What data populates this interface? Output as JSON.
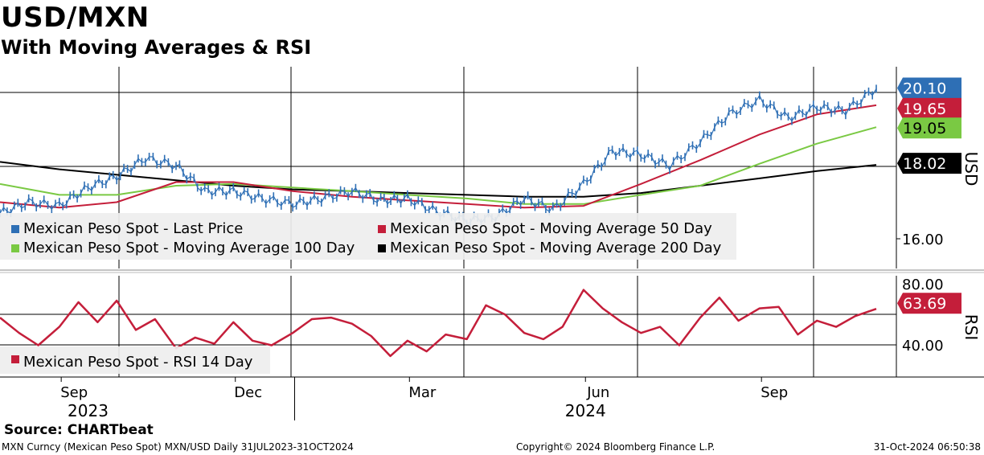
{
  "title": "USD/MXN",
  "subtitle": "With Moving Averages & RSI",
  "source": "Source: CHARTbeat",
  "footer": {
    "left": "MXN Curncy (Mexican Peso Spot) MXN/USD  Daily 31JUL2023-31OCT2024",
    "center": "Copyright© 2024 Bloomberg Finance L.P.",
    "right": "31-Oct-2024 06:50:38"
  },
  "colors": {
    "last_price": "#2e6fb5",
    "ma50": "#c41e3a",
    "ma100": "#7ac943",
    "ma200": "#000000",
    "rsi": "#c41e3a"
  },
  "chart_data": [
    {
      "type": "line",
      "panel": "price",
      "title": "USD/MXN",
      "subtitle": "With Moving Averages & RSI",
      "ylabel": "USD",
      "date_range": [
        "2023-07-31",
        "2024-10-31"
      ],
      "y_ticks": [
        "16.00"
      ],
      "last_values": {
        "last_price": "20.10",
        "ma50": "19.65",
        "ma100": "19.05",
        "ma200": "18.02"
      },
      "legend": [
        "Mexican Peso Spot - Last Price",
        "Mexican Peso Spot - Moving Average 50 Day",
        "Mexican Peso Spot - Moving Average 100 Day",
        "Mexican Peso Spot - Moving Average 200 Day"
      ],
      "legend_placement": "bottom-left",
      "grid": true,
      "series": [
        {
          "name": "Mexican Peso Spot - Last Price",
          "key": "last_price",
          "x": [
            "2023-07-31",
            "2023-08-15",
            "2023-08-31",
            "2023-09-15",
            "2023-09-30",
            "2023-10-15",
            "2023-10-31",
            "2023-11-15",
            "2023-11-30",
            "2023-12-15",
            "2023-12-31",
            "2024-01-15",
            "2024-01-31",
            "2024-02-15",
            "2024-02-29",
            "2024-03-15",
            "2024-03-31",
            "2024-04-15",
            "2024-04-30",
            "2024-05-15",
            "2024-05-31",
            "2024-06-15",
            "2024-06-30",
            "2024-07-15",
            "2024-07-31",
            "2024-08-15",
            "2024-08-31",
            "2024-09-15",
            "2024-09-30",
            "2024-10-15",
            "2024-10-31"
          ],
          "values": [
            16.7,
            17.0,
            16.9,
            17.4,
            17.7,
            18.2,
            18.0,
            17.3,
            17.3,
            17.1,
            16.95,
            17.1,
            17.3,
            17.05,
            17.1,
            16.75,
            16.5,
            16.6,
            17.1,
            16.8,
            17.5,
            18.4,
            18.3,
            18.0,
            18.65,
            19.4,
            19.8,
            19.3,
            19.6,
            19.5,
            20.1
          ]
        },
        {
          "name": "Mexican Peso Spot - Moving Average 50 Day",
          "key": "ma50",
          "x": [
            "2023-07-31",
            "2023-08-31",
            "2023-09-30",
            "2023-10-31",
            "2023-11-30",
            "2023-12-31",
            "2024-01-31",
            "2024-02-29",
            "2024-03-31",
            "2024-04-30",
            "2024-05-31",
            "2024-06-30",
            "2024-07-31",
            "2024-08-31",
            "2024-09-30",
            "2024-10-31"
          ],
          "values": [
            17.0,
            16.85,
            17.0,
            17.55,
            17.55,
            17.3,
            17.15,
            17.05,
            16.95,
            16.85,
            16.9,
            17.5,
            18.15,
            18.85,
            19.4,
            19.65
          ]
        },
        {
          "name": "Mexican Peso Spot - Moving Average 100 Day",
          "key": "ma100",
          "x": [
            "2023-07-31",
            "2023-08-31",
            "2023-09-30",
            "2023-10-31",
            "2023-11-30",
            "2023-12-31",
            "2024-01-31",
            "2024-02-29",
            "2024-03-31",
            "2024-04-30",
            "2024-05-31",
            "2024-06-30",
            "2024-07-31",
            "2024-08-31",
            "2024-09-30",
            "2024-10-31"
          ],
          "values": [
            17.5,
            17.2,
            17.2,
            17.45,
            17.5,
            17.4,
            17.3,
            17.2,
            17.1,
            16.95,
            16.95,
            17.2,
            17.45,
            18.05,
            18.6,
            19.05
          ]
        },
        {
          "name": "Mexican Peso Spot - Moving Average 200 Day",
          "key": "ma200",
          "x": [
            "2023-07-31",
            "2023-08-31",
            "2023-09-30",
            "2023-10-31",
            "2023-11-30",
            "2023-12-31",
            "2024-01-31",
            "2024-02-29",
            "2024-03-31",
            "2024-04-30",
            "2024-05-31",
            "2024-06-30",
            "2024-07-31",
            "2024-08-31",
            "2024-09-30",
            "2024-10-31"
          ],
          "values": [
            18.1,
            17.9,
            17.75,
            17.6,
            17.45,
            17.35,
            17.3,
            17.25,
            17.2,
            17.15,
            17.15,
            17.25,
            17.45,
            17.65,
            17.85,
            18.02
          ]
        }
      ]
    },
    {
      "type": "line",
      "panel": "rsi",
      "ylabel": "RSI",
      "y_ticks": [
        "80.00",
        "40.00"
      ],
      "last_value": "63.69",
      "legend": [
        "Mexican Peso Spot - RSI 14 Day"
      ],
      "legend_placement": "bottom-left",
      "grid": true,
      "series": [
        {
          "name": "Mexican Peso Spot - RSI 14 Day",
          "key": "rsi",
          "x": [
            "2023-07-31",
            "2023-08-10",
            "2023-08-20",
            "2023-08-31",
            "2023-09-10",
            "2023-09-20",
            "2023-09-30",
            "2023-10-10",
            "2023-10-20",
            "2023-10-31",
            "2023-11-10",
            "2023-11-20",
            "2023-11-30",
            "2023-12-10",
            "2023-12-20",
            "2023-12-31",
            "2024-01-10",
            "2024-01-20",
            "2024-01-31",
            "2024-02-10",
            "2024-02-20",
            "2024-02-29",
            "2024-03-10",
            "2024-03-20",
            "2024-03-31",
            "2024-04-10",
            "2024-04-20",
            "2024-04-30",
            "2024-05-10",
            "2024-05-20",
            "2024-05-31",
            "2024-06-10",
            "2024-06-20",
            "2024-06-30",
            "2024-07-10",
            "2024-07-20",
            "2024-07-31",
            "2024-08-10",
            "2024-08-20",
            "2024-08-31",
            "2024-09-10",
            "2024-09-20",
            "2024-09-30",
            "2024-10-10",
            "2024-10-20",
            "2024-10-31"
          ],
          "values": [
            58,
            48,
            40,
            52,
            68,
            55,
            69,
            50,
            57,
            38,
            45,
            41,
            55,
            43,
            40,
            48,
            57,
            58,
            54,
            46,
            33,
            43,
            36,
            47,
            44,
            66,
            60,
            48,
            44,
            52,
            76,
            64,
            55,
            48,
            52,
            40,
            58,
            71,
            56,
            64,
            65,
            47,
            56,
            52,
            59,
            63.69
          ]
        }
      ]
    }
  ],
  "x_axis": {
    "months": [
      {
        "label": "Sep",
        "date": "2023-09-01"
      },
      {
        "label": "Dec",
        "date": "2023-12-01"
      },
      {
        "label": "Mar",
        "date": "2024-03-01"
      },
      {
        "label": "Jun",
        "date": "2024-06-01"
      },
      {
        "label": "Sep",
        "date": "2024-09-01"
      }
    ],
    "years": [
      {
        "label": "2023",
        "date": "2023-09-15"
      },
      {
        "label": "2024",
        "date": "2024-06-01"
      }
    ],
    "year_divider": "2024-01-01"
  }
}
